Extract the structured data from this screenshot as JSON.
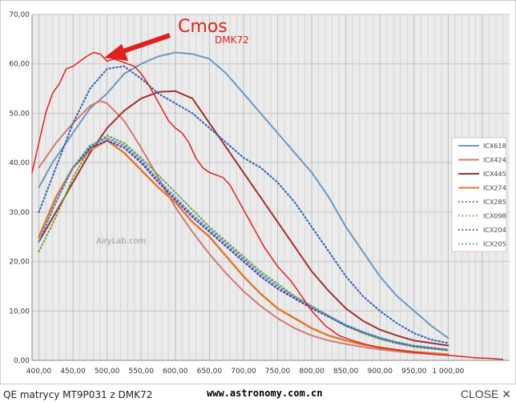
{
  "chart_data": {
    "type": "line",
    "title": "",
    "xlabel": "",
    "ylabel": "",
    "xlim": [
      390,
      1090
    ],
    "ylim": [
      0,
      70
    ],
    "grid": true,
    "legend_position": "right",
    "x_ticks": [
      "400,00",
      "450,00",
      "500,00",
      "550,00",
      "600,00",
      "650,00",
      "700,00",
      "750,00",
      "800,00",
      "850,00",
      "900,00",
      "950,00",
      "1 000,00"
    ],
    "y_ticks": [
      "0,00",
      "10,00",
      "20,00",
      "30,00",
      "40,00",
      "50,00",
      "60,00",
      "70,00"
    ],
    "watermark": "AiryLab.com",
    "annotation": {
      "main": "Cmos",
      "sub": "DMK72",
      "color": "#e02020"
    },
    "series": [
      {
        "name": "ICX618",
        "color": "#7096c0",
        "style": "solid",
        "width": 2,
        "points": [
          [
            400,
            35
          ],
          [
            420,
            40
          ],
          [
            450,
            46
          ],
          [
            475,
            51
          ],
          [
            500,
            54
          ],
          [
            525,
            58
          ],
          [
            550,
            60
          ],
          [
            575,
            61.5
          ],
          [
            600,
            62.3
          ],
          [
            625,
            62
          ],
          [
            650,
            61
          ],
          [
            675,
            58
          ],
          [
            700,
            54
          ],
          [
            725,
            50
          ],
          [
            750,
            46
          ],
          [
            775,
            42
          ],
          [
            800,
            38
          ],
          [
            825,
            33
          ],
          [
            850,
            27
          ],
          [
            875,
            22
          ],
          [
            900,
            17
          ],
          [
            925,
            13
          ],
          [
            950,
            10
          ],
          [
            975,
            7
          ],
          [
            1000,
            4.5
          ]
        ]
      },
      {
        "name": "ICX424",
        "color": "#d07a72",
        "style": "solid",
        "width": 2,
        "points": [
          [
            400,
            39
          ],
          [
            425,
            44
          ],
          [
            450,
            48
          ],
          [
            475,
            51.5
          ],
          [
            490,
            52.5
          ],
          [
            500,
            52
          ],
          [
            525,
            48.5
          ],
          [
            550,
            43
          ],
          [
            575,
            37
          ],
          [
            600,
            31
          ],
          [
            625,
            26
          ],
          [
            650,
            21.5
          ],
          [
            675,
            17.5
          ],
          [
            700,
            14
          ],
          [
            725,
            11
          ],
          [
            750,
            8.5
          ],
          [
            775,
            6.5
          ],
          [
            800,
            5
          ],
          [
            825,
            4
          ],
          [
            850,
            3.3
          ],
          [
            875,
            2.7
          ],
          [
            900,
            2.2
          ],
          [
            925,
            1.8
          ],
          [
            950,
            1.5
          ],
          [
            1000,
            1.1
          ]
        ]
      },
      {
        "name": "ICX445",
        "color": "#a03030",
        "style": "solid",
        "width": 2,
        "points": [
          [
            400,
            24
          ],
          [
            425,
            30
          ],
          [
            450,
            36
          ],
          [
            475,
            42
          ],
          [
            500,
            47
          ],
          [
            525,
            50.5
          ],
          [
            550,
            53
          ],
          [
            575,
            54.3
          ],
          [
            600,
            54.5
          ],
          [
            625,
            53
          ],
          [
            650,
            48
          ],
          [
            675,
            43
          ],
          [
            700,
            38
          ],
          [
            725,
            33
          ],
          [
            750,
            28
          ],
          [
            775,
            23
          ],
          [
            800,
            18
          ],
          [
            825,
            14
          ],
          [
            850,
            10.5
          ],
          [
            875,
            8
          ],
          [
            900,
            6.2
          ],
          [
            925,
            5
          ],
          [
            950,
            4
          ],
          [
            975,
            3.5
          ],
          [
            1000,
            3
          ]
        ]
      },
      {
        "name": "ICX274",
        "color": "#e07830",
        "style": "solid",
        "width": 2.5,
        "points": [
          [
            400,
            25
          ],
          [
            425,
            33
          ],
          [
            450,
            39
          ],
          [
            475,
            42.5
          ],
          [
            500,
            44.5
          ],
          [
            525,
            42
          ],
          [
            550,
            38.5
          ],
          [
            575,
            35
          ],
          [
            600,
            32
          ],
          [
            625,
            28
          ],
          [
            650,
            25
          ],
          [
            675,
            21
          ],
          [
            700,
            17
          ],
          [
            725,
            13.5
          ],
          [
            750,
            10.5
          ],
          [
            775,
            8.5
          ],
          [
            800,
            6.5
          ],
          [
            825,
            5
          ],
          [
            850,
            4
          ],
          [
            875,
            3.2
          ],
          [
            900,
            2.6
          ],
          [
            925,
            2.1
          ],
          [
            950,
            1.7
          ],
          [
            1000,
            1.2
          ]
        ]
      },
      {
        "name": "ICX285",
        "color": "#3060b0",
        "style": "dotted",
        "width": 2,
        "points": [
          [
            400,
            30
          ],
          [
            425,
            39
          ],
          [
            450,
            48
          ],
          [
            475,
            55
          ],
          [
            500,
            59
          ],
          [
            525,
            59.5
          ],
          [
            550,
            57
          ],
          [
            575,
            54
          ],
          [
            600,
            52
          ],
          [
            625,
            50
          ],
          [
            650,
            47
          ],
          [
            675,
            44
          ],
          [
            700,
            41
          ],
          [
            725,
            39
          ],
          [
            750,
            36
          ],
          [
            775,
            32
          ],
          [
            800,
            27
          ],
          [
            825,
            22
          ],
          [
            850,
            17
          ],
          [
            875,
            13
          ],
          [
            900,
            10
          ],
          [
            925,
            7.5
          ],
          [
            950,
            5.5
          ],
          [
            975,
            4.2
          ],
          [
            1000,
            3.5
          ]
        ]
      },
      {
        "name": "ICX098",
        "color": "#70a040",
        "style": "dotted",
        "width": 2,
        "points": [
          [
            400,
            22
          ],
          [
            425,
            29
          ],
          [
            450,
            37
          ],
          [
            475,
            43
          ],
          [
            500,
            45.5
          ],
          [
            525,
            44
          ],
          [
            550,
            41
          ],
          [
            575,
            37.5
          ],
          [
            600,
            34
          ],
          [
            625,
            30.5
          ],
          [
            650,
            27
          ],
          [
            675,
            24
          ],
          [
            700,
            21
          ],
          [
            725,
            18
          ],
          [
            750,
            15.5
          ],
          [
            775,
            13
          ],
          [
            800,
            11
          ],
          [
            825,
            9
          ],
          [
            850,
            7
          ],
          [
            875,
            5.5
          ],
          [
            900,
            4.3
          ],
          [
            925,
            3.4
          ],
          [
            950,
            2.7
          ],
          [
            1000,
            2
          ]
        ]
      },
      {
        "name": "ICX204",
        "color": "#5030a0",
        "style": "dotted",
        "width": 2,
        "points": [
          [
            400,
            24
          ],
          [
            425,
            32
          ],
          [
            450,
            39
          ],
          [
            475,
            43
          ],
          [
            500,
            44.5
          ],
          [
            525,
            43
          ],
          [
            550,
            40
          ],
          [
            575,
            36
          ],
          [
            600,
            32.5
          ],
          [
            625,
            29
          ],
          [
            650,
            26
          ],
          [
            675,
            23
          ],
          [
            700,
            20
          ],
          [
            725,
            17
          ],
          [
            750,
            14.5
          ],
          [
            775,
            12.5
          ],
          [
            800,
            10.5
          ],
          [
            825,
            8.8
          ],
          [
            850,
            7
          ],
          [
            875,
            5.7
          ],
          [
            900,
            4.5
          ],
          [
            925,
            3.6
          ],
          [
            950,
            2.9
          ],
          [
            1000,
            2.1
          ]
        ]
      },
      {
        "name": "ICX205",
        "color": "#4090c8",
        "style": "dotted",
        "width": 2,
        "points": [
          [
            400,
            24
          ],
          [
            425,
            32
          ],
          [
            450,
            39
          ],
          [
            475,
            43.5
          ],
          [
            500,
            45
          ],
          [
            525,
            43.5
          ],
          [
            550,
            40.5
          ],
          [
            575,
            36.5
          ],
          [
            600,
            33
          ],
          [
            625,
            29.5
          ],
          [
            650,
            26.5
          ],
          [
            675,
            23.5
          ],
          [
            700,
            20.5
          ],
          [
            725,
            17.5
          ],
          [
            750,
            15
          ],
          [
            775,
            12.8
          ],
          [
            800,
            10.8
          ],
          [
            825,
            9
          ],
          [
            850,
            7.2
          ],
          [
            875,
            5.8
          ],
          [
            900,
            4.6
          ],
          [
            925,
            3.7
          ],
          [
            950,
            3
          ],
          [
            1000,
            2.2
          ]
        ]
      },
      {
        "name": "",
        "color": "#e02020",
        "style": "solid",
        "width": 1.5,
        "points": [
          [
            390,
            38
          ],
          [
            400,
            44
          ],
          [
            410,
            50
          ],
          [
            420,
            54
          ],
          [
            430,
            56
          ],
          [
            440,
            59
          ],
          [
            450,
            59.5
          ],
          [
            460,
            60.5
          ],
          [
            470,
            61.5
          ],
          [
            480,
            62.3
          ],
          [
            490,
            62
          ],
          [
            500,
            60.5
          ],
          [
            510,
            61
          ],
          [
            520,
            60.5
          ],
          [
            530,
            60
          ],
          [
            540,
            59.5
          ],
          [
            550,
            58
          ],
          [
            560,
            56
          ],
          [
            570,
            53.5
          ],
          [
            580,
            51
          ],
          [
            590,
            48.5
          ],
          [
            600,
            47
          ],
          [
            610,
            46
          ],
          [
            620,
            44
          ],
          [
            630,
            41
          ],
          [
            640,
            39
          ],
          [
            650,
            38
          ],
          [
            660,
            37.5
          ],
          [
            670,
            37
          ],
          [
            680,
            35.5
          ],
          [
            690,
            33
          ],
          [
            700,
            30.5
          ],
          [
            710,
            28
          ],
          [
            720,
            25.5
          ],
          [
            730,
            23
          ],
          [
            740,
            21
          ],
          [
            750,
            19
          ],
          [
            760,
            17.5
          ],
          [
            770,
            16
          ],
          [
            780,
            14
          ],
          [
            790,
            12
          ],
          [
            800,
            10
          ],
          [
            810,
            8.5
          ],
          [
            820,
            7
          ],
          [
            830,
            6
          ],
          [
            840,
            5
          ],
          [
            850,
            4.5
          ],
          [
            860,
            4
          ],
          [
            870,
            3.6
          ],
          [
            880,
            3.2
          ],
          [
            890,
            2.9
          ],
          [
            900,
            2.6
          ],
          [
            920,
            2.2
          ],
          [
            940,
            1.8
          ],
          [
            960,
            1.5
          ],
          [
            980,
            1.2
          ],
          [
            1000,
            1
          ],
          [
            1020,
            0.8
          ],
          [
            1040,
            0.5
          ],
          [
            1060,
            0.4
          ],
          [
            1080,
            0.2
          ]
        ]
      }
    ]
  },
  "footer": {
    "caption": "QE matrycy MT9P031 z DMK72",
    "url": "www.astronomy.com.cn",
    "close_label": "CLOSE",
    "close_icon": "✕"
  }
}
